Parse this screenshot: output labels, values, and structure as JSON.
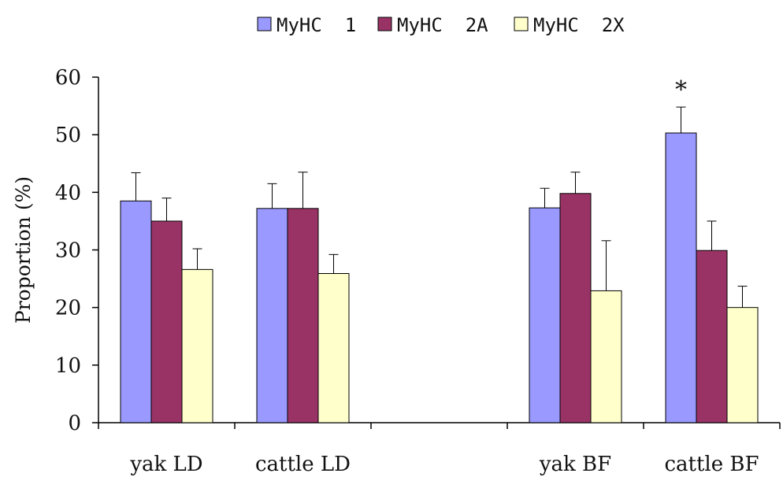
{
  "chart_data": {
    "type": "bar",
    "categories": [
      "yak LD",
      "cattle LD",
      "",
      "yak BF",
      "cattle BF"
    ],
    "series": [
      {
        "name": "MyHC  1",
        "color": "#9999ff",
        "values": [
          38.5,
          37.2,
          null,
          37.3,
          50.3
        ],
        "errors": [
          4.9,
          4.3,
          null,
          3.4,
          4.5
        ]
      },
      {
        "name": "MyHC  2A",
        "color": "#993366",
        "values": [
          35.0,
          37.2,
          null,
          39.8,
          29.9
        ],
        "errors": [
          4.0,
          6.3,
          null,
          3.7,
          5.1
        ]
      },
      {
        "name": "MyHC  2X",
        "color": "#ffffcc",
        "values": [
          26.6,
          25.9,
          null,
          22.9,
          20.0
        ],
        "errors": [
          3.6,
          3.3,
          null,
          8.7,
          3.7
        ]
      }
    ],
    "ylabel": "Proportion (%)",
    "xlabel": "",
    "ylim": [
      0,
      60
    ],
    "yticks": [
      "0",
      "10",
      "20",
      "30",
      "40",
      "50",
      "60"
    ],
    "grid": false,
    "legend_position": "top",
    "annotations": [
      {
        "text": "*",
        "category_index": 4,
        "series_index": 0
      }
    ]
  }
}
